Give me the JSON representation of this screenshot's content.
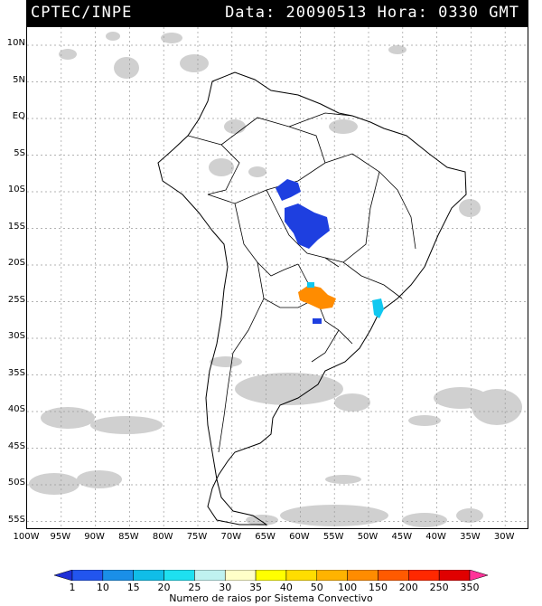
{
  "header": {
    "source": "CPTEC/INPE",
    "data_label": "Data:",
    "date": "20090513",
    "hora_label": "Hora:",
    "time": "0330",
    "tz": "GMT"
  },
  "lat_labels": [
    "10N",
    "5N",
    "EQ",
    "5S",
    "10S",
    "15S",
    "20S",
    "25S",
    "30S",
    "35S",
    "40S",
    "45S",
    "50S",
    "55S"
  ],
  "lon_labels": [
    "100W",
    "95W",
    "90W",
    "85W",
    "80W",
    "75W",
    "70W",
    "65W",
    "60W",
    "55W",
    "50W",
    "45W",
    "40W",
    "35W",
    "30W"
  ],
  "colorbar": {
    "ticks": [
      "1",
      "10",
      "15",
      "20",
      "25",
      "30",
      "35",
      "40",
      "50",
      "100",
      "150",
      "200",
      "250",
      "350"
    ],
    "colors": [
      "#1e2fd6",
      "#2255ee",
      "#1a8fe8",
      "#10bde8",
      "#1ee0f0",
      "#bff2f0",
      "#ffffc8",
      "#ffff00",
      "#ffdd00",
      "#ffb300",
      "#ff8c00",
      "#ff5a00",
      "#ff2800",
      "#e00000",
      "#ff3399"
    ],
    "title": "Numero de raios por Sistema Convectivo"
  },
  "map": {
    "background": "#ffffff",
    "cloud_color": "#cfcfcf",
    "grid_color": "#9a9a9a",
    "border_color": "#000000"
  }
}
